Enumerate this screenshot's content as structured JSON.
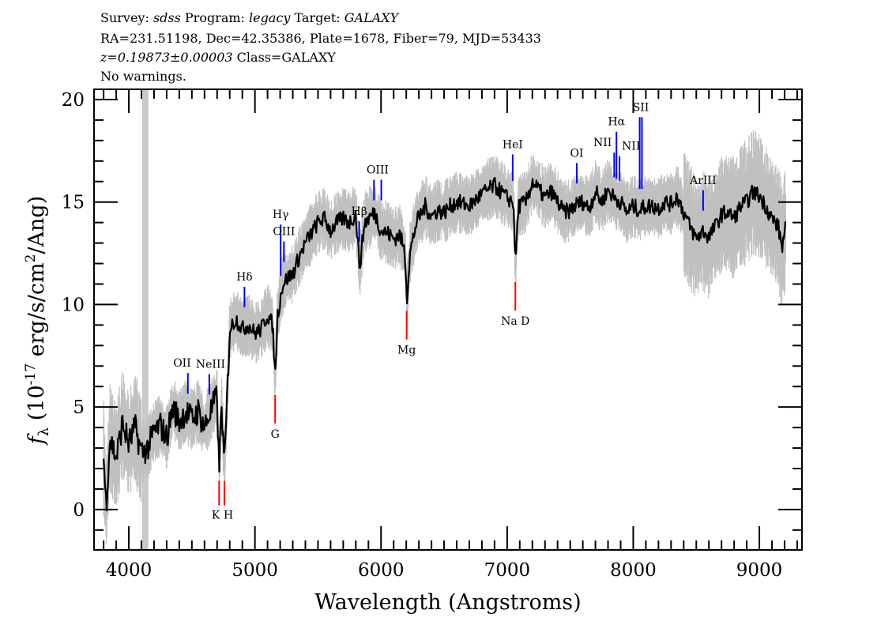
{
  "header": {
    "line1": {
      "survey_label": "Survey: ",
      "survey": "sdss",
      "program_label": " Program: ",
      "program": "legacy",
      "target_label": " Target: ",
      "target": "GALAXY"
    },
    "line2": "RA=231.51198, Dec=42.35386, Plate=1678, Fiber=79, MJD=53433",
    "line3": {
      "z": "z=0.19873±0.00003",
      "class": " Class=GALAXY"
    },
    "line4": "No warnings."
  },
  "chart_data": {
    "type": "line",
    "title": "",
    "xlabel": "Wavelength (Angstroms)",
    "ylabel": {
      "symbol": "f",
      "sub": "λ",
      "pre": " (10",
      "exp": "-17",
      "mid": " erg/s/cm",
      "exp2": "2",
      "post": "/Ang)"
    },
    "xlim": [
      3724,
      9338
    ],
    "ylim": [
      -1.97,
      20.5
    ],
    "xticks": [
      4000,
      5000,
      6000,
      7000,
      8000,
      9000
    ],
    "yticks": [
      0,
      5,
      10,
      15,
      20
    ],
    "grid": false,
    "colors": {
      "flux": "#000000",
      "error": "#c0c0c0",
      "emission": "#0000ff",
      "absorption": "#ff0000",
      "masked_band": "#c8c8c8"
    },
    "masked_band": [
      4105,
      4155
    ],
    "series": [
      {
        "role": "smoothed flux (approximate)",
        "x": [
          3800,
          3820,
          3850,
          3900,
          3950,
          4000,
          4050,
          4100,
          4150,
          4200,
          4250,
          4300,
          4350,
          4400,
          4450,
          4500,
          4550,
          4600,
          4650,
          4700,
          4716,
          4735,
          4758,
          4780,
          4800,
          4850,
          4900,
          4950,
          5000,
          5050,
          5100,
          5140,
          5160,
          5180,
          5220,
          5260,
          5300,
          5350,
          5400,
          5450,
          5500,
          5550,
          5600,
          5650,
          5700,
          5750,
          5800,
          5830,
          5870,
          5950,
          6000,
          6050,
          6100,
          6150,
          6190,
          6205,
          6230,
          6280,
          6350,
          6400,
          6450,
          6500,
          6550,
          6600,
          6700,
          6800,
          6850,
          6900,
          6950,
          7000,
          7050,
          7065,
          7090,
          7150,
          7200,
          7250,
          7300,
          7350,
          7400,
          7450,
          7500,
          7550,
          7600,
          7650,
          7700,
          7750,
          7800,
          7850,
          7900,
          7950,
          8000,
          8050,
          8100,
          8150,
          8200,
          8250,
          8300,
          8350,
          8400,
          8450,
          8500,
          8550,
          8600,
          8650,
          8700,
          8750,
          8800,
          8850,
          8900,
          8950,
          9000,
          9050,
          9100,
          9150,
          9180,
          9210
        ],
        "y": [
          2.5,
          0.2,
          3.5,
          2.5,
          4.2,
          3.2,
          4.0,
          2.8,
          3.0,
          3.8,
          4.1,
          3.5,
          5.0,
          4.3,
          4.8,
          4.4,
          4.8,
          4.0,
          4.8,
          5.5,
          1.8,
          5.2,
          2.0,
          5.5,
          8.8,
          9.3,
          8.8,
          9.0,
          8.6,
          8.8,
          9.5,
          9.0,
          6.5,
          9.5,
          11.0,
          11.3,
          11.5,
          12.3,
          13.0,
          13.5,
          14.0,
          14.2,
          13.6,
          14.0,
          14.2,
          14.0,
          14.4,
          11.8,
          14.0,
          14.5,
          13.6,
          13.5,
          13.2,
          13.4,
          12.5,
          10.3,
          12.5,
          14.0,
          14.8,
          14.3,
          14.6,
          14.5,
          14.8,
          15.0,
          14.8,
          15.4,
          15.6,
          15.8,
          15.5,
          15.2,
          15.0,
          12.0,
          14.8,
          15.0,
          16.0,
          15.6,
          15.2,
          15.5,
          15.0,
          14.5,
          14.6,
          14.9,
          15.0,
          14.7,
          15.5,
          15.0,
          15.6,
          15.2,
          15.0,
          14.5,
          14.8,
          14.6,
          14.8,
          14.8,
          14.7,
          15.0,
          14.9,
          15.3,
          14.5,
          13.8,
          13.2,
          13.6,
          13.3,
          13.8,
          14.4,
          14.5,
          14.2,
          14.8,
          15.0,
          15.5,
          15.3,
          14.8,
          14.2,
          13.8,
          12.8,
          13.8
        ]
      }
    ],
    "line_markers": [
      {
        "label": "OII",
        "wavelengths": [
          4468
        ],
        "kind": "emission"
      },
      {
        "label": "NeIII",
        "wavelengths": [
          4638
        ],
        "kind": "emission"
      },
      {
        "label": "K",
        "wavelengths": [
          4716
        ],
        "kind": "calcium"
      },
      {
        "label": "H",
        "wavelengths": [
          4758
        ],
        "kind": "calcium"
      },
      {
        "label": "Hδ",
        "wavelengths": [
          4917
        ],
        "kind": "emission"
      },
      {
        "label": "G",
        "wavelengths": [
          5160
        ],
        "kind": "absorption"
      },
      {
        "label": "Hγ",
        "wavelengths": [
          5204
        ],
        "kind": "emission"
      },
      {
        "label": "OIII",
        "wavelengths": [
          5230
        ],
        "kind": "emission"
      },
      {
        "label": "Hβ",
        "wavelengths": [
          5827
        ],
        "kind": "emission"
      },
      {
        "label": "OIII",
        "wavelengths": [
          5944,
          6002
        ],
        "kind": "emission"
      },
      {
        "label": "Mg",
        "wavelengths": [
          6203
        ],
        "kind": "absorption"
      },
      {
        "label": "HeI",
        "wavelengths": [
          7044
        ],
        "kind": "emission"
      },
      {
        "label": "Na D",
        "wavelengths": [
          7065
        ],
        "kind": "absorption"
      },
      {
        "label": "OI",
        "wavelengths": [
          7552
        ],
        "kind": "emission"
      },
      {
        "label": "NII",
        "wavelengths": [
          7849
        ],
        "kind": "emission"
      },
      {
        "label": "Hα",
        "wavelengths": [
          7867
        ],
        "kind": "emission"
      },
      {
        "label": "NII",
        "wavelengths": [
          7891
        ],
        "kind": "emission"
      },
      {
        "label": "SII",
        "wavelengths": [
          8051,
          8069
        ],
        "kind": "emission"
      },
      {
        "label": "ArIII",
        "wavelengths": [
          8554
        ],
        "kind": "emission"
      }
    ]
  }
}
